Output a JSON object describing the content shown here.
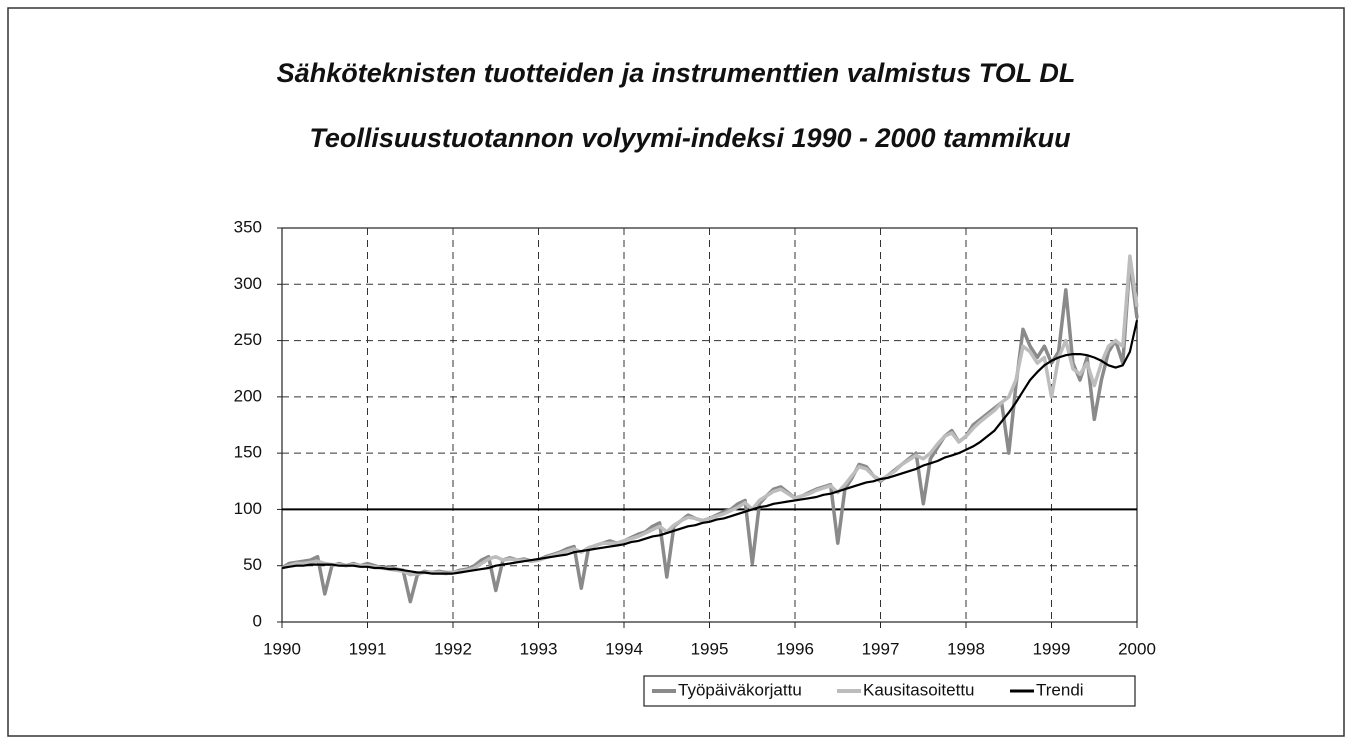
{
  "chart_data": {
    "type": "line",
    "title": "Sähköteknisten tuotteiden ja instrumenttien valmistus TOL DL",
    "subtitle": "Teollisuustuotannon volyymi-indeksi 1990 - 2000 tammikuu",
    "categories": [
      "1990",
      null,
      null,
      null,
      null,
      null,
      null,
      null,
      null,
      null,
      null,
      null,
      "1991",
      null,
      null,
      null,
      null,
      null,
      null,
      null,
      null,
      null,
      null,
      null,
      "1992",
      null,
      null,
      null,
      null,
      null,
      null,
      null,
      null,
      null,
      null,
      null,
      "1993",
      null,
      null,
      null,
      null,
      null,
      null,
      null,
      null,
      null,
      null,
      null,
      "1994",
      null,
      null,
      null,
      null,
      null,
      null,
      null,
      null,
      null,
      null,
      null,
      "1995",
      null,
      null,
      null,
      null,
      null,
      null,
      null,
      null,
      null,
      null,
      null,
      "1996",
      null,
      null,
      null,
      null,
      null,
      null,
      null,
      null,
      null,
      null,
      null,
      "1997",
      null,
      null,
      null,
      null,
      null,
      null,
      null,
      null,
      null,
      null,
      null,
      "1998",
      null,
      null,
      null,
      null,
      null,
      null,
      null,
      null,
      null,
      null,
      null,
      "1999",
      null,
      null,
      null,
      null,
      null,
      null,
      null,
      null,
      null,
      null,
      null,
      "2000"
    ],
    "series": [
      {
        "name": "Työpäiväkorjattu",
        "color": "#8a8a8a",
        "values": [
          48,
          52,
          53,
          54,
          55,
          58,
          25,
          50,
          52,
          50,
          52,
          50,
          52,
          50,
          48,
          49,
          47,
          46,
          18,
          42,
          45,
          44,
          45,
          44,
          44,
          46,
          47,
          50,
          55,
          58,
          28,
          55,
          57,
          55,
          56,
          54,
          55,
          58,
          60,
          62,
          65,
          67,
          30,
          65,
          68,
          70,
          72,
          70,
          72,
          75,
          78,
          80,
          85,
          88,
          40,
          85,
          90,
          95,
          92,
          90,
          92,
          95,
          98,
          100,
          105,
          108,
          52,
          105,
          112,
          118,
          120,
          115,
          110,
          112,
          115,
          118,
          120,
          122,
          70,
          118,
          128,
          140,
          138,
          130,
          125,
          130,
          135,
          140,
          145,
          150,
          105,
          145,
          155,
          165,
          170,
          160,
          165,
          175,
          180,
          185,
          190,
          195,
          150,
          210,
          260,
          245,
          235,
          245,
          230,
          240,
          295,
          230,
          215,
          235,
          180,
          215,
          240,
          250,
          230,
          320,
          270
        ]
      },
      {
        "name": "Kausitasoitettu",
        "color": "#bdbdbd",
        "values": [
          48,
          50,
          52,
          52,
          53,
          54,
          52,
          51,
          51,
          50,
          51,
          50,
          50,
          49,
          48,
          47,
          46,
          45,
          42,
          43,
          44,
          44,
          44,
          43,
          44,
          45,
          46,
          48,
          52,
          56,
          58,
          55,
          56,
          55,
          55,
          54,
          55,
          57,
          59,
          61,
          63,
          65,
          62,
          66,
          68,
          70,
          70,
          70,
          72,
          74,
          76,
          79,
          82,
          85,
          80,
          86,
          90,
          93,
          92,
          90,
          92,
          94,
          96,
          99,
          102,
          106,
          100,
          108,
          112,
          116,
          118,
          114,
          110,
          112,
          114,
          117,
          119,
          121,
          115,
          122,
          130,
          138,
          136,
          130,
          126,
          130,
          134,
          140,
          144,
          148,
          145,
          150,
          158,
          165,
          168,
          160,
          165,
          172,
          178,
          183,
          188,
          195,
          200,
          215,
          245,
          240,
          230,
          235,
          200,
          235,
          250,
          225,
          220,
          230,
          210,
          230,
          245,
          250,
          245,
          325,
          280
        ]
      },
      {
        "name": "Trendi",
        "color": "#000000",
        "values": [
          48,
          49,
          50,
          50,
          51,
          51,
          51,
          51,
          50,
          50,
          50,
          49,
          49,
          48,
          48,
          47,
          47,
          46,
          45,
          44,
          44,
          43,
          43,
          43,
          43,
          44,
          45,
          46,
          47,
          48,
          50,
          51,
          52,
          53,
          54,
          55,
          56,
          57,
          58,
          59,
          60,
          62,
          63,
          64,
          65,
          66,
          67,
          68,
          69,
          71,
          72,
          74,
          76,
          77,
          79,
          81,
          83,
          85,
          86,
          88,
          89,
          91,
          92,
          94,
          96,
          98,
          100,
          102,
          103,
          105,
          106,
          107,
          108,
          109,
          110,
          111,
          113,
          114,
          116,
          118,
          120,
          122,
          124,
          125,
          127,
          128,
          130,
          132,
          134,
          136,
          139,
          141,
          143,
          146,
          148,
          150,
          153,
          156,
          160,
          165,
          170,
          178,
          186,
          195,
          205,
          215,
          222,
          228,
          232,
          235,
          237,
          238,
          238,
          237,
          235,
          232,
          228,
          226,
          228,
          240,
          268
        ]
      }
    ],
    "reference_line": 100,
    "ylim": [
      0,
      350
    ],
    "yticks": [
      0,
      50,
      100,
      150,
      200,
      250,
      300,
      350
    ],
    "grid": true,
    "legend": "bottom-right"
  }
}
